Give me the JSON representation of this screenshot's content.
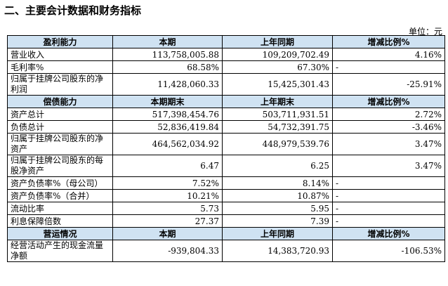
{
  "heading": "二、主要会计数据和财务指标",
  "unit": "单位：元",
  "sections": [
    {
      "headers": [
        "盈利能力",
        "本期",
        "上年同期",
        "增减比例%"
      ],
      "rows": [
        {
          "label": "营业收入",
          "a": "113,758,005.88",
          "b": "109,209,702.49",
          "c": "4.16%"
        },
        {
          "label": "毛利率%",
          "a": "68.58%",
          "b": "67.30%",
          "c": "-"
        },
        {
          "label": "归属于挂牌公司股东的净利润",
          "a": "11,428,060.33",
          "b": "15,425,301.43",
          "c": "-25.91%"
        }
      ]
    },
    {
      "headers": [
        "偿债能力",
        "本期期末",
        "上年期末",
        "增减比例%"
      ],
      "rows": [
        {
          "label": "资产总计",
          "a": "517,398,454.76",
          "b": "503,711,931.51",
          "c": "2.72%"
        },
        {
          "label": "负债总计",
          "a": "52,836,419.84",
          "b": "54,732,391.75",
          "c": "-3.46%"
        },
        {
          "label": "归属于挂牌公司股东的净资产",
          "a": "464,562,034.92",
          "b": "448,979,539.76",
          "c": "3.47%"
        },
        {
          "label": "归属于挂牌公司股东的每股净资产",
          "a": "6.47",
          "b": "6.25",
          "c": "3.47%"
        },
        {
          "label": "资产负债率%（母公司）",
          "a": "7.52%",
          "b": "8.14%",
          "c": "-"
        },
        {
          "label": "资产负债率%（合并）",
          "a": "10.21%",
          "b": "10.87%",
          "c": "-"
        },
        {
          "label": "流动比率",
          "a": "5.73",
          "b": "5.95",
          "c": "-"
        },
        {
          "label": "利息保障倍数",
          "a": "27.37",
          "b": "7.39",
          "c": "-"
        }
      ]
    },
    {
      "headers": [
        "营运情况",
        "本期",
        "上年同期",
        "增减比例%"
      ],
      "rows": [
        {
          "label": "经营活动产生的现金流量净额",
          "a": "-939,804.33",
          "b": "14,383,720.93",
          "c": "-106.53%"
        }
      ]
    }
  ]
}
